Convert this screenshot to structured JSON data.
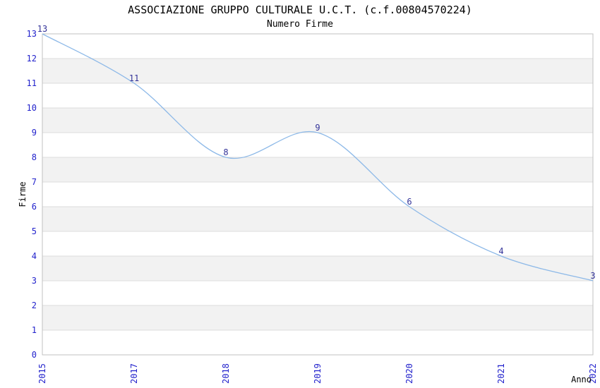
{
  "chart_data": {
    "type": "line",
    "title": "ASSOCIAZIONE GRUPPO CULTURALE U.C.T. (c.f.00804570224)",
    "subtitle": "Numero Firme",
    "xlabel": "Anno",
    "ylabel": "Firme",
    "categories": [
      "2015",
      "2017",
      "2018",
      "2019",
      "2020",
      "2021",
      "2022"
    ],
    "values": [
      13,
      11,
      8,
      9,
      6,
      4,
      3
    ],
    "ylim": [
      0,
      13
    ],
    "ytick_step": 1,
    "x_tick_rotation": -90,
    "grid": "horizontal-only",
    "legend_position": "none",
    "band_fill_intervals": [
      [
        1,
        2
      ],
      [
        3,
        4
      ],
      [
        5,
        6
      ],
      [
        7,
        8
      ],
      [
        9,
        10
      ],
      [
        11,
        12
      ]
    ],
    "colors": {
      "line": "#8db9e8",
      "tick_label": "#2222cc",
      "data_label": "#333399",
      "band": "#f2f2f2",
      "gridline": "#dcdcdc",
      "frame": "#c0c0c0",
      "text": "#000000",
      "background": "#ffffff"
    }
  }
}
